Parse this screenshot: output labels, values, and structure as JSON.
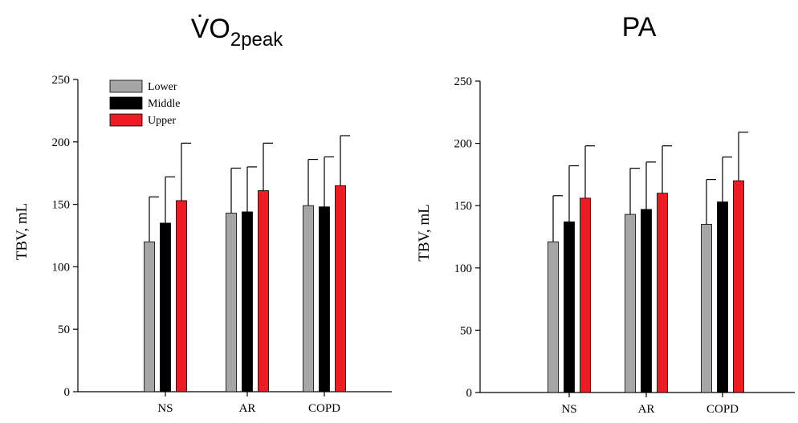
{
  "colors": {
    "Lower": "#a6a6a6",
    "Middle": "#000000",
    "Upper": "#ed1c24"
  },
  "chart_data": [
    {
      "type": "bar",
      "title": "VO2peak",
      "title_main": "V̇O",
      "title_sub": "2peak",
      "xlabel": "",
      "ylabel": "TBV, mL",
      "ylim": [
        0,
        250
      ],
      "yticks": [
        "0",
        "50",
        "100",
        "150",
        "200",
        "250"
      ],
      "categories": [
        "NS",
        "AR",
        "COPD"
      ],
      "legend": {
        "placement": "top-left",
        "entries": [
          "Lower",
          "Middle",
          "Upper"
        ]
      },
      "grid": false,
      "series": [
        {
          "name": "Lower",
          "values": [
            120,
            143,
            149
          ],
          "error": [
            36,
            36,
            37
          ]
        },
        {
          "name": "Middle",
          "values": [
            135,
            144,
            148
          ],
          "error": [
            37,
            36,
            40
          ]
        },
        {
          "name": "Upper",
          "values": [
            153,
            161,
            165
          ],
          "error": [
            46,
            38,
            40
          ]
        }
      ]
    },
    {
      "type": "bar",
      "title": "PA",
      "title_main": "PA",
      "title_sub": "",
      "xlabel": "",
      "ylabel": "TBV, mL",
      "ylim": [
        0,
        250
      ],
      "yticks": [
        "0",
        "50",
        "100",
        "150",
        "200",
        "250"
      ],
      "categories": [
        "NS",
        "AR",
        "COPD"
      ],
      "legend": null,
      "grid": false,
      "series": [
        {
          "name": "Lower",
          "values": [
            121,
            143,
            135
          ],
          "error": [
            37,
            37,
            36
          ]
        },
        {
          "name": "Middle",
          "values": [
            137,
            147,
            153
          ],
          "error": [
            45,
            38,
            36
          ]
        },
        {
          "name": "Upper",
          "values": [
            156,
            160,
            170
          ],
          "error": [
            42,
            38,
            39
          ]
        }
      ]
    }
  ]
}
